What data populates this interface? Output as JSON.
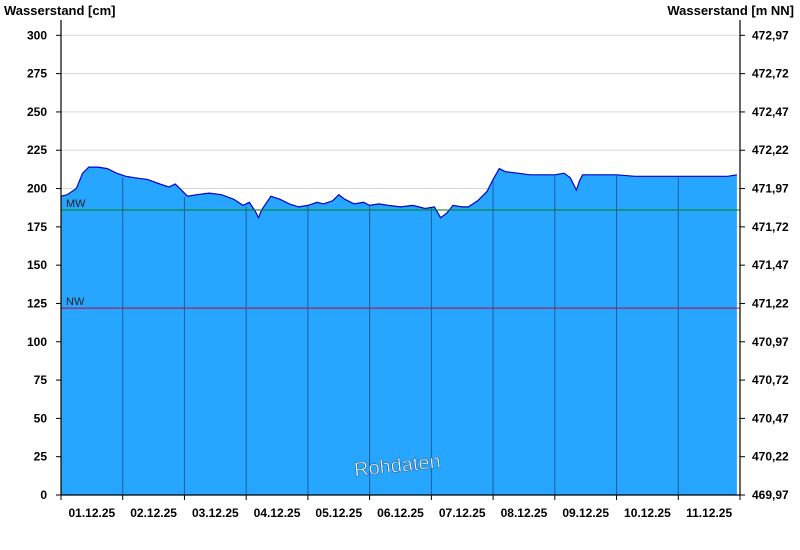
{
  "chart_data": {
    "type": "area",
    "ylabel_left": "Wasserstand [cm]",
    "ylabel_right": "Wasserstand [m NN]",
    "ylim": [
      0,
      310
    ],
    "yticks_left": [
      "0",
      "25",
      "50",
      "75",
      "100",
      "125",
      "150",
      "175",
      "200",
      "225",
      "250",
      "275",
      "300"
    ],
    "yticks_right": [
      "469,97",
      "470,22",
      "470,47",
      "470,72",
      "470,97",
      "471,22",
      "471,47",
      "471,72",
      "471,97",
      "472,22",
      "472,47",
      "472,72",
      "472,97"
    ],
    "categories": [
      "01.12.25",
      "02.12.25",
      "03.12.25",
      "04.12.25",
      "05.12.25",
      "06.12.25",
      "07.12.25",
      "08.12.25",
      "09.12.25",
      "10.12.25",
      "11.12.25"
    ],
    "x_range_days": [
      0,
      11
    ],
    "series": [
      {
        "values": [
          [
            0.0,
            195
          ],
          [
            0.1,
            196
          ],
          [
            0.25,
            200
          ],
          [
            0.35,
            210
          ],
          [
            0.45,
            214
          ],
          [
            0.6,
            214
          ],
          [
            0.75,
            213
          ],
          [
            0.9,
            210
          ],
          [
            1.05,
            208
          ],
          [
            1.2,
            207
          ],
          [
            1.4,
            206
          ],
          [
            1.6,
            203
          ],
          [
            1.75,
            201
          ],
          [
            1.85,
            203
          ],
          [
            1.95,
            199
          ],
          [
            2.05,
            195
          ],
          [
            2.2,
            196
          ],
          [
            2.4,
            197
          ],
          [
            2.6,
            196
          ],
          [
            2.8,
            193
          ],
          [
            2.95,
            189
          ],
          [
            3.05,
            191
          ],
          [
            3.15,
            185
          ],
          [
            3.2,
            181
          ],
          [
            3.25,
            186
          ],
          [
            3.4,
            195
          ],
          [
            3.55,
            193
          ],
          [
            3.7,
            190
          ],
          [
            3.85,
            188
          ],
          [
            4.0,
            189
          ],
          [
            4.15,
            191
          ],
          [
            4.25,
            190
          ],
          [
            4.4,
            192
          ],
          [
            4.5,
            196
          ],
          [
            4.6,
            193
          ],
          [
            4.75,
            190
          ],
          [
            4.9,
            191
          ],
          [
            5.0,
            189
          ],
          [
            5.15,
            190
          ],
          [
            5.3,
            189
          ],
          [
            5.5,
            188
          ],
          [
            5.7,
            189
          ],
          [
            5.9,
            187
          ],
          [
            6.05,
            188
          ],
          [
            6.15,
            181
          ],
          [
            6.25,
            184
          ],
          [
            6.35,
            189
          ],
          [
            6.5,
            188
          ],
          [
            6.6,
            188
          ],
          [
            6.75,
            192
          ],
          [
            6.9,
            198
          ],
          [
            7.0,
            206
          ],
          [
            7.1,
            213
          ],
          [
            7.2,
            211
          ],
          [
            7.4,
            210
          ],
          [
            7.6,
            209
          ],
          [
            7.8,
            209
          ],
          [
            8.0,
            209
          ],
          [
            8.15,
            210
          ],
          [
            8.25,
            207
          ],
          [
            8.35,
            199
          ],
          [
            8.4,
            205
          ],
          [
            8.45,
            209
          ],
          [
            8.6,
            209
          ],
          [
            8.8,
            209
          ],
          [
            9.0,
            209
          ],
          [
            9.3,
            208
          ],
          [
            9.6,
            208
          ],
          [
            9.9,
            208
          ],
          [
            10.2,
            208
          ],
          [
            10.5,
            208
          ],
          [
            10.8,
            208
          ],
          [
            10.95,
            209
          ]
        ]
      }
    ],
    "reference_lines": [
      {
        "label": "MW",
        "value": 186,
        "color": "#008000"
      },
      {
        "label": "NW",
        "value": 122,
        "color": "#c00040"
      }
    ],
    "colors": {
      "fill": "#26a6ff",
      "line": "#0000cc",
      "grid": "#d8d8d8",
      "daygrid": "#1f5d99"
    },
    "grid": true,
    "annotation": "Rohdaten"
  }
}
